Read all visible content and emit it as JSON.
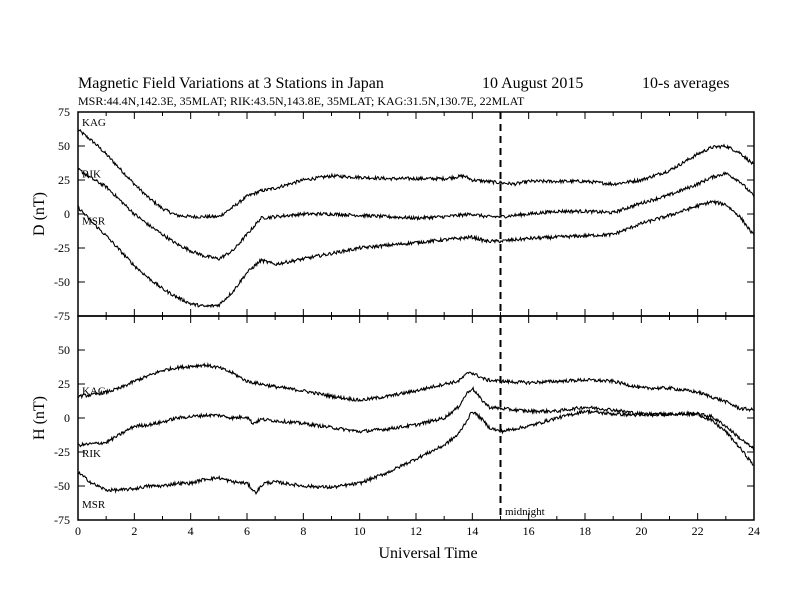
{
  "title": {
    "main": "Magnetic Field Variations at 3 Stations in Japan",
    "date": "10  August  2015",
    "avg": "10-s averages",
    "subtitle": "MSR:44.4N,142.3E, 35MLAT;  RIK:43.5N,143.8E, 35MLAT;  KAG:31.5N,130.7E, 22MLAT"
  },
  "annotation": {
    "midnight": "midnight"
  },
  "chart_data": [
    {
      "type": "line",
      "panel": "top",
      "ylabel": "D (nT)",
      "xlabel": "Universal Time",
      "xlim": [
        0,
        24
      ],
      "ylim": [
        -75,
        75
      ],
      "xticks": [
        0,
        2,
        4,
        6,
        8,
        10,
        12,
        14,
        16,
        18,
        20,
        22,
        24
      ],
      "xtick_labels": [
        "0",
        "2",
        "4",
        "6",
        "8",
        "10",
        "12",
        "14",
        "16",
        "18",
        "20",
        "22",
        "24"
      ],
      "yticks": [
        -75,
        -50,
        -25,
        0,
        25,
        50,
        75
      ],
      "ytick_labels": [
        "-75",
        "-50",
        "-25",
        "0",
        "25",
        "50",
        "75"
      ],
      "vline_x": 15,
      "series": [
        {
          "name": "KAG",
          "x": [
            0,
            0.3,
            0.6,
            1,
            1.5,
            2,
            2.5,
            3,
            3.5,
            4,
            4.5,
            5,
            5.5,
            6,
            6.5,
            7,
            8,
            9,
            10,
            11,
            12,
            13,
            13.7,
            14,
            14.5,
            15,
            15.5,
            16,
            17,
            18,
            19,
            20,
            21,
            22,
            22.5,
            23,
            23.5,
            24
          ],
          "y": [
            62,
            57,
            52,
            44,
            33,
            22,
            12,
            4,
            -1,
            -2,
            -2,
            -2,
            5,
            13,
            17,
            19,
            25,
            28,
            27,
            26,
            26,
            26,
            28,
            25,
            24,
            23,
            22,
            24,
            24,
            24,
            22,
            25,
            32,
            44,
            49,
            50,
            45,
            36
          ]
        },
        {
          "name": "RIK",
          "x": [
            0,
            0.5,
            1,
            1.5,
            2,
            2.5,
            3,
            3.5,
            4,
            4.5,
            5,
            5.5,
            6,
            6.5,
            7,
            8,
            9,
            10,
            11,
            12,
            13,
            14,
            14.5,
            15,
            16,
            17,
            18,
            19,
            20,
            21,
            22,
            22.5,
            23,
            23.5,
            24
          ],
          "y": [
            33,
            26,
            20,
            10,
            0,
            -8,
            -15,
            -22,
            -27,
            -31,
            -33,
            -27,
            -15,
            -3,
            -2,
            0,
            0,
            -1,
            -2,
            -3,
            -2,
            0,
            -2,
            -2,
            0,
            2,
            2,
            1,
            8,
            14,
            22,
            27,
            30,
            24,
            13
          ]
        },
        {
          "name": "MSR",
          "x": [
            0,
            0.5,
            1,
            1.5,
            2,
            2.5,
            3,
            3.5,
            4,
            4.5,
            5,
            5.5,
            6,
            6.5,
            7,
            8,
            9,
            10,
            11,
            12,
            13,
            14,
            14.5,
            15,
            16,
            17,
            18,
            19,
            20,
            21,
            22,
            22.5,
            23,
            23.5,
            24
          ],
          "y": [
            5,
            -6,
            -16,
            -27,
            -38,
            -47,
            -55,
            -61,
            -66,
            -68,
            -67,
            -57,
            -43,
            -34,
            -37,
            -33,
            -29,
            -25,
            -23,
            -21,
            -19,
            -17,
            -20,
            -20,
            -18,
            -17,
            -16,
            -15,
            -7,
            -1,
            6,
            9,
            7,
            -2,
            -16
          ]
        }
      ]
    },
    {
      "type": "line",
      "panel": "bottom",
      "ylabel": "H (nT)",
      "xlabel": "Universal Time",
      "xlim": [
        0,
        24
      ],
      "ylim": [
        -75,
        75
      ],
      "xticks": [
        0,
        2,
        4,
        6,
        8,
        10,
        12,
        14,
        16,
        18,
        20,
        22,
        24
      ],
      "xtick_labels": [
        "0",
        "2",
        "4",
        "6",
        "8",
        "10",
        "12",
        "14",
        "16",
        "18",
        "20",
        "22",
        "24"
      ],
      "yticks": [
        -75,
        -50,
        -25,
        0,
        25,
        50
      ],
      "ytick_labels": [
        "-75",
        "-50",
        "-25",
        "0",
        "25",
        "50"
      ],
      "vline_x": 15,
      "series": [
        {
          "name": "KAG",
          "x": [
            0,
            0.5,
            1,
            1.5,
            2,
            2.5,
            3,
            3.5,
            4,
            4.5,
            5,
            5.5,
            6,
            6.5,
            7,
            8,
            9,
            10,
            11,
            12,
            13,
            13.5,
            13.9,
            14.2,
            14.5,
            15,
            16,
            17,
            18,
            19,
            20,
            21,
            22,
            23,
            23.5,
            24
          ],
          "y": [
            16,
            17,
            19,
            22,
            27,
            31,
            35,
            37,
            38,
            39,
            37,
            33,
            27,
            25,
            23,
            20,
            16,
            13,
            16,
            20,
            25,
            27,
            34,
            31,
            28,
            27,
            26,
            27,
            28,
            27,
            22,
            22,
            19,
            12,
            7,
            6
          ]
        },
        {
          "name": "RIK",
          "x": [
            0,
            0.5,
            1,
            1.5,
            2,
            2.5,
            3,
            3.5,
            4,
            4.5,
            5,
            5.5,
            6,
            6.2,
            6.5,
            7,
            8,
            9,
            10,
            11,
            12,
            13,
            13.5,
            13.8,
            14,
            14.3,
            14.6,
            15,
            16,
            17,
            18,
            19,
            20,
            21,
            22,
            22.5,
            23,
            23.5,
            24
          ],
          "y": [
            -20,
            -19,
            -18,
            -12,
            -6,
            -5,
            -3,
            0,
            1,
            2,
            2,
            0,
            1,
            -4,
            -1,
            -2,
            -4,
            -7,
            -10,
            -8,
            -5,
            0,
            8,
            18,
            22,
            14,
            8,
            7,
            5,
            5,
            8,
            6,
            3,
            3,
            3,
            1,
            -6,
            -15,
            -23
          ]
        },
        {
          "name": "MSR",
          "x": [
            0,
            0.5,
            1,
            1.5,
            2,
            2.5,
            3,
            3.5,
            4,
            4.5,
            5,
            5.5,
            6,
            6.3,
            6.6,
            7,
            8,
            9,
            10,
            11,
            12,
            13,
            13.5,
            13.8,
            14,
            14.3,
            14.6,
            15,
            16,
            17,
            18,
            19,
            20,
            21,
            22,
            22.5,
            23,
            23.5,
            24
          ],
          "y": [
            -40,
            -48,
            -53,
            -53,
            -52,
            -50,
            -50,
            -48,
            -48,
            -45,
            -44,
            -47,
            -48,
            -55,
            -48,
            -47,
            -50,
            -51,
            -48,
            -40,
            -30,
            -20,
            -12,
            -2,
            5,
            0,
            -7,
            -10,
            -6,
            0,
            5,
            3,
            2,
            3,
            3,
            -2,
            -10,
            -22,
            -35
          ]
        }
      ]
    }
  ]
}
